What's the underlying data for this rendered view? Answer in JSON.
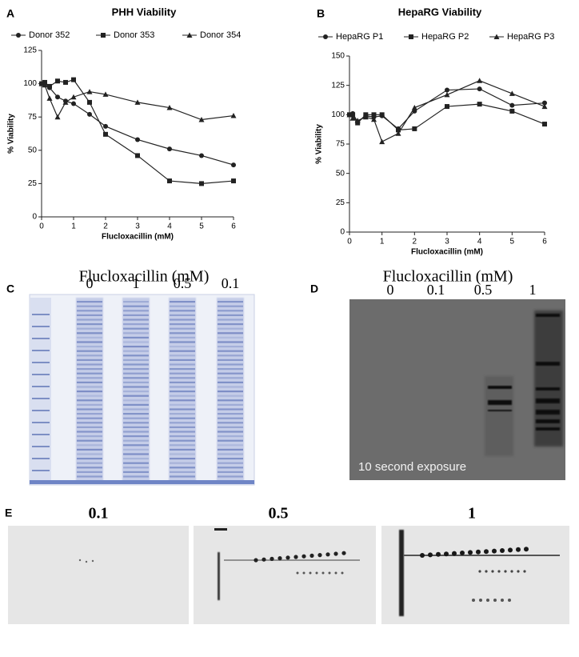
{
  "chart_data": [
    {
      "type": "line",
      "panel": "A",
      "title": "PHH Viability",
      "xlabel": "Flucloxacillin (mM)",
      "ylabel": "% Viability",
      "x": [
        0,
        0.1,
        0.25,
        0.5,
        0.75,
        1,
        1.5,
        2,
        3,
        4,
        5,
        6
      ],
      "series": [
        {
          "name": "Donor 352",
          "color": "#222222",
          "marker": "circle",
          "values": [
            100,
            100,
            97,
            90,
            87,
            85,
            77,
            68,
            58,
            51,
            46,
            39
          ]
        },
        {
          "name": "Donor 353",
          "color": "#222222",
          "marker": "square",
          "values": [
            100,
            101,
            98,
            102,
            101,
            103,
            86,
            62,
            46,
            27,
            25,
            27
          ]
        },
        {
          "name": "Donor 354",
          "color": "#222222",
          "marker": "triangle",
          "values": [
            100,
            99,
            89,
            75,
            86,
            90,
            94,
            92,
            86,
            82,
            73,
            76
          ]
        }
      ],
      "xlim": [
        0,
        6
      ],
      "xticks": [
        0,
        1,
        2,
        3,
        4,
        5,
        6
      ],
      "ylim": [
        0,
        125
      ],
      "yticks": [
        0,
        25,
        50,
        75,
        100,
        125
      ],
      "legend": "top"
    },
    {
      "type": "line",
      "panel": "B",
      "title": "HepaRG Viability",
      "xlabel": "Flucloxacillin (mM)",
      "ylabel": "% Viability",
      "x": [
        0,
        0.1,
        0.25,
        0.5,
        0.75,
        1,
        1.5,
        2,
        3,
        4,
        5,
        6
      ],
      "series": [
        {
          "name": "HepaRG P1",
          "color": "#222222",
          "marker": "circle",
          "values": [
            100,
            101,
            94,
            99,
            98,
            99,
            88,
            103,
            121,
            122,
            108,
            110
          ]
        },
        {
          "name": "HepaRG P2",
          "color": "#222222",
          "marker": "square",
          "values": [
            100,
            100,
            93,
            100,
            100,
            100,
            87,
            88,
            107,
            109,
            103,
            92
          ]
        },
        {
          "name": "HepaRG P3",
          "color": "#222222",
          "marker": "triangle",
          "values": [
            100,
            97,
            95,
            98,
            96,
            77,
            84,
            106,
            117,
            129,
            118,
            107
          ]
        }
      ],
      "xlim": [
        0,
        6
      ],
      "xticks": [
        0,
        1,
        2,
        3,
        4,
        5,
        6
      ],
      "ylim": [
        0,
        150
      ],
      "yticks": [
        0,
        25,
        50,
        75,
        100,
        125,
        150
      ],
      "legend": "top"
    }
  ],
  "panel_c": {
    "letter": "C",
    "title": "Flucloxacillin  (mM)",
    "lanes": [
      "0",
      "1",
      "0.5",
      "0.1"
    ]
  },
  "panel_d": {
    "letter": "D",
    "title": "Flucloxacillin  (mM)",
    "lanes": [
      "0",
      "0.1",
      "0.5",
      "1"
    ],
    "caption": "10 second exposure"
  },
  "panel_e": {
    "letter": "E",
    "labels": [
      "0.1",
      "0.5",
      "1"
    ]
  }
}
